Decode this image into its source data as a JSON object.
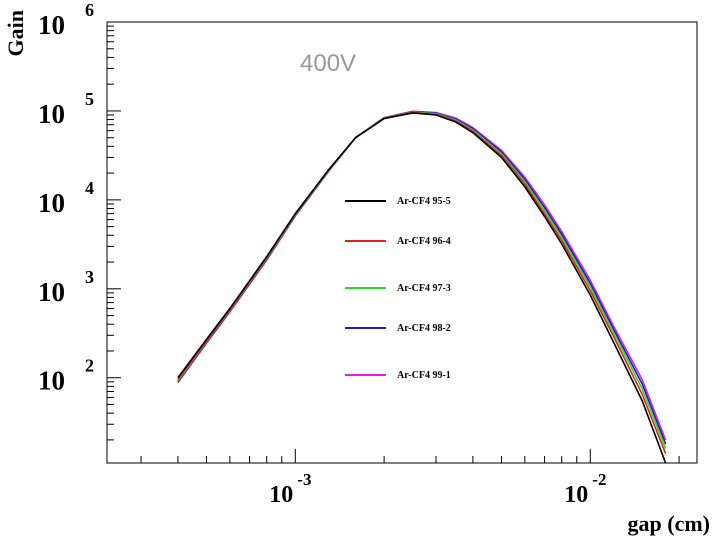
{
  "chart_data": {
    "type": "line",
    "title": "",
    "annotation": "400V",
    "xlabel": "gap (cm)",
    "ylabel": "Gain",
    "xscale": "log",
    "yscale": "log",
    "xlim": [
      0.00023,
      0.023
    ],
    "ylim": [
      11,
      1000000
    ],
    "x_ticks": [
      {
        "value": 0.001,
        "base": "10",
        "exp": "-3"
      },
      {
        "value": 0.01,
        "base": "10",
        "exp": "-2"
      }
    ],
    "y_ticks": [
      {
        "value": 100,
        "base": "10",
        "exp": "2"
      },
      {
        "value": 1000,
        "base": "10",
        "exp": "3"
      },
      {
        "value": 10000,
        "base": "10",
        "exp": "4"
      },
      {
        "value": 100000,
        "base": "10",
        "exp": "5"
      },
      {
        "value": 1000000,
        "base": "10",
        "exp": "6"
      }
    ],
    "grid": false,
    "legend_position": "center",
    "series": [
      {
        "name": "Ar-CF4 95-5",
        "color": "#000000",
        "x": [
          0.0004,
          0.0005,
          0.0006,
          0.0008,
          0.001,
          0.0013,
          0.0016,
          0.002,
          0.0025,
          0.003,
          0.0035,
          0.004,
          0.005,
          0.006,
          0.007,
          0.008,
          0.01,
          0.012,
          0.015,
          0.018
        ],
        "y": [
          100,
          270,
          600,
          2300,
          7000,
          22000,
          50000,
          82000,
          95000,
          90000,
          75000,
          57000,
          30000,
          14000,
          6500,
          3200,
          850,
          250,
          55,
          11
        ]
      },
      {
        "name": "Ar-CF4 96-4",
        "color": "#e8201a",
        "x": [
          0.0004,
          0.0005,
          0.0006,
          0.0008,
          0.001,
          0.0013,
          0.0016,
          0.002,
          0.0025,
          0.003,
          0.0035,
          0.004,
          0.005,
          0.006,
          0.007,
          0.008,
          0.01,
          0.012,
          0.015,
          0.018
        ],
        "y": [
          95,
          260,
          580,
          2250,
          6900,
          21800,
          50000,
          82500,
          96000,
          91500,
          77000,
          59000,
          31500,
          15000,
          7000,
          3500,
          950,
          290,
          65,
          14
        ]
      },
      {
        "name": "Ar-CF4 97-3",
        "color": "#22e022",
        "x": [
          0.0004,
          0.0005,
          0.0006,
          0.0008,
          0.001,
          0.0013,
          0.0016,
          0.002,
          0.0025,
          0.003,
          0.0035,
          0.004,
          0.005,
          0.006,
          0.007,
          0.008,
          0.01,
          0.012,
          0.015,
          0.018
        ],
        "y": [
          92,
          255,
          570,
          2200,
          6800,
          21600,
          50000,
          83000,
          97000,
          93000,
          79000,
          61000,
          33000,
          16000,
          7600,
          3800,
          1050,
          320,
          75,
          16
        ]
      },
      {
        "name": "Ar-CF4 98-2",
        "color": "#1c1ccc",
        "x": [
          0.0004,
          0.0005,
          0.0006,
          0.0008,
          0.001,
          0.0013,
          0.0016,
          0.002,
          0.0025,
          0.003,
          0.0035,
          0.004,
          0.005,
          0.006,
          0.007,
          0.008,
          0.01,
          0.012,
          0.015,
          0.018
        ],
        "y": [
          90,
          250,
          560,
          2150,
          6700,
          21400,
          50000,
          83500,
          98000,
          94500,
          81000,
          63000,
          34500,
          17000,
          8200,
          4100,
          1150,
          350,
          85,
          18
        ]
      },
      {
        "name": "Ar-CF4 99-1",
        "color": "#e020e0",
        "x": [
          0.0004,
          0.0005,
          0.0006,
          0.0008,
          0.001,
          0.0013,
          0.0016,
          0.002,
          0.0025,
          0.003,
          0.0035,
          0.004,
          0.005,
          0.006,
          0.007,
          0.008,
          0.01,
          0.012,
          0.015,
          0.018
        ],
        "y": [
          88,
          245,
          550,
          2100,
          6600,
          21200,
          50000,
          84000,
          99000,
          96000,
          83000,
          65000,
          36000,
          18000,
          8800,
          4400,
          1250,
          380,
          95,
          20
        ]
      }
    ]
  }
}
